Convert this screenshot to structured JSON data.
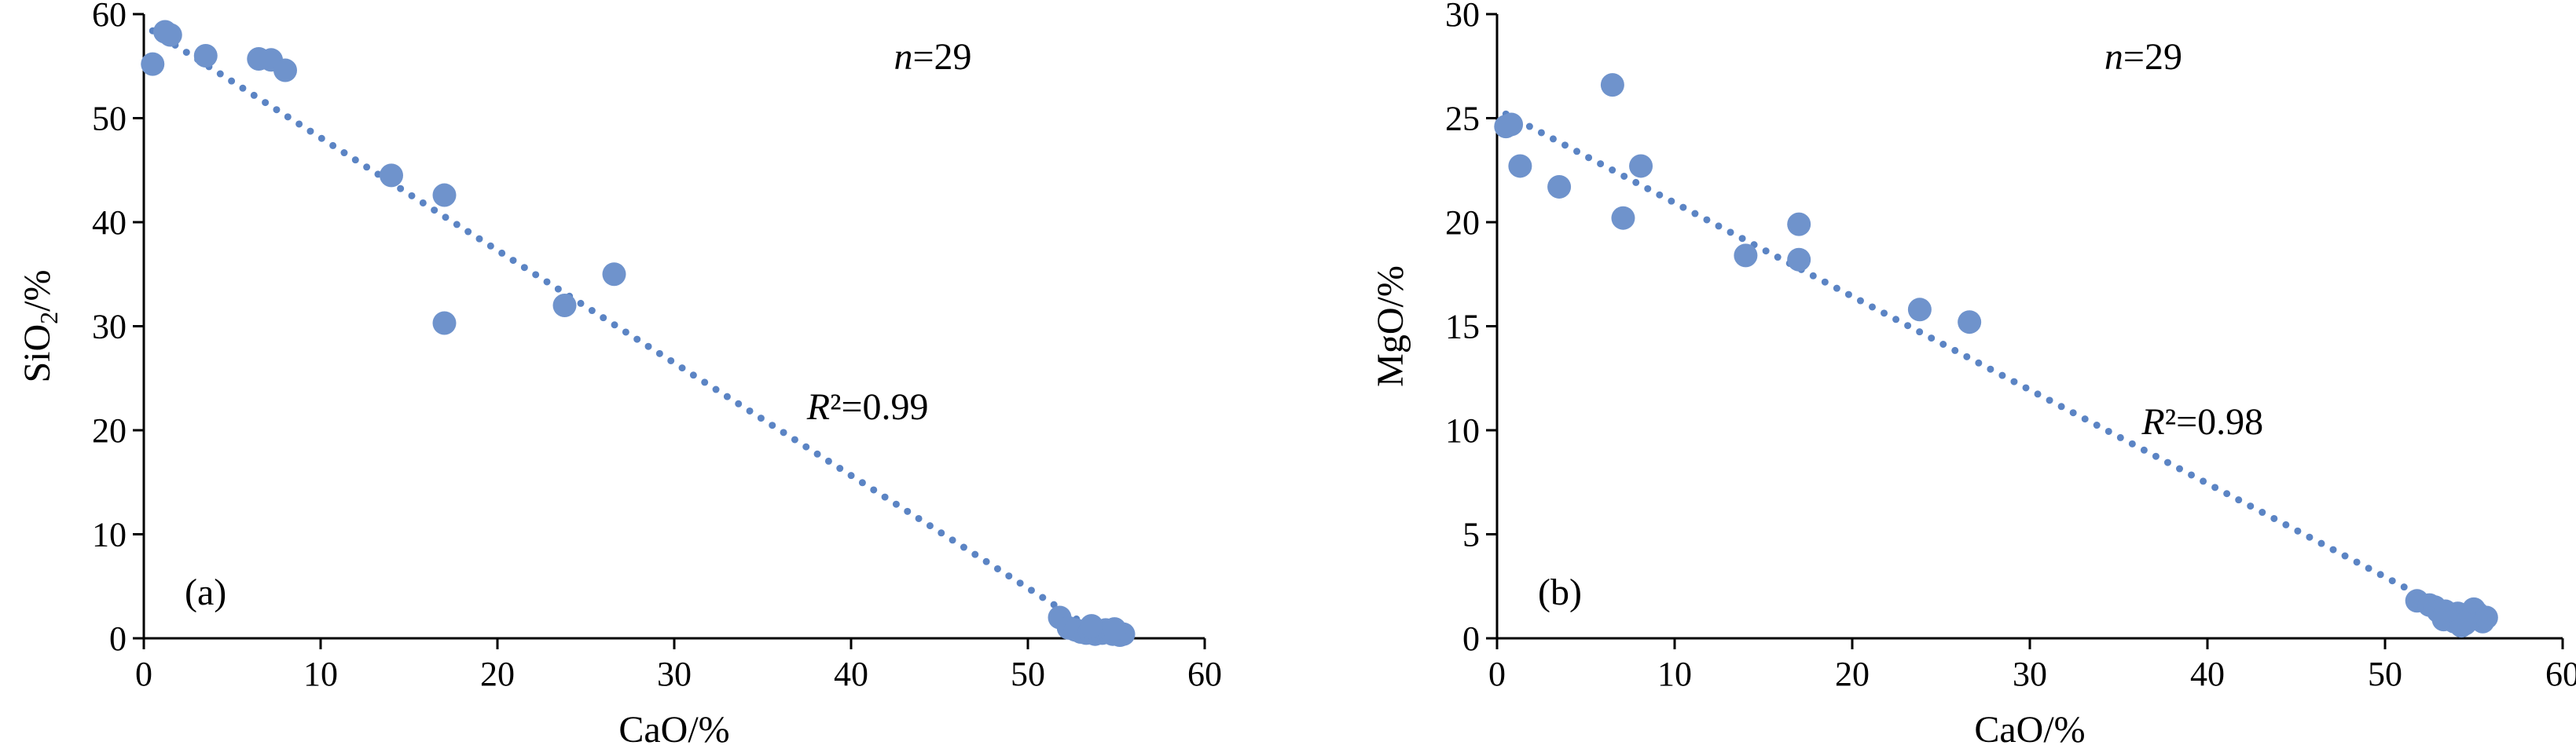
{
  "chart_data": [
    {
      "type": "scatter",
      "panel_label": "(a)",
      "xlabel": "CaO/%",
      "ylabel": {
        "main": "SiO",
        "sub": "2",
        "rest": "/%"
      },
      "xlim": [
        0,
        60
      ],
      "ylim": [
        0,
        60
      ],
      "xticks": [
        0,
        10,
        20,
        30,
        40,
        50,
        60
      ],
      "yticks": [
        0,
        10,
        20,
        30,
        40,
        50,
        60
      ],
      "n_annotation": {
        "var": "n",
        "text": "=29"
      },
      "r2_annotation": {
        "var": "R",
        "text": "²=0.99"
      },
      "trendline": {
        "x": [
          0.5,
          54.0
        ],
        "y": [
          58.4,
          0.5
        ]
      },
      "color": "#6f93cc",
      "points": {
        "x": [
          0.5,
          1.2,
          1.5,
          3.5,
          6.5,
          7.2,
          8.0,
          14.0,
          17.0,
          17.0,
          23.8,
          26.6,
          51.8,
          52.3,
          52.7,
          53.0,
          53.3,
          53.5,
          53.8,
          54.0,
          54.2,
          54.4,
          54.6,
          54.8,
          55.0,
          55.2,
          55.4,
          53.6,
          54.9
        ],
        "y": [
          55.2,
          58.3,
          58.0,
          56.0,
          55.7,
          55.6,
          54.6,
          44.5,
          42.6,
          30.3,
          32.0,
          35.0,
          2.0,
          1.0,
          0.8,
          0.6,
          0.5,
          0.7,
          0.4,
          0.6,
          0.5,
          0.8,
          0.6,
          0.4,
          0.5,
          0.3,
          0.4,
          1.2,
          0.9
        ]
      }
    },
    {
      "type": "scatter",
      "panel_label": "(b)",
      "xlabel": "CaO/%",
      "ylabel": {
        "main": "MgO/%",
        "sub": "",
        "rest": ""
      },
      "xlim": [
        0,
        60
      ],
      "ylim": [
        0,
        30
      ],
      "xticks": [
        0,
        10,
        20,
        30,
        40,
        50,
        60
      ],
      "yticks": [
        0,
        5,
        10,
        15,
        20,
        25,
        30
      ],
      "n_annotation": {
        "var": "n",
        "text": "=29"
      },
      "r2_annotation": {
        "var": "R",
        "text": "²=0.98"
      },
      "trendline": {
        "x": [
          0.5,
          55.0
        ],
        "y": [
          25.2,
          0.7
        ]
      },
      "color": "#6f93cc",
      "points": {
        "x": [
          0.5,
          0.8,
          1.3,
          3.5,
          6.5,
          7.1,
          8.1,
          14.0,
          17.0,
          17.0,
          23.8,
          26.6,
          51.8,
          52.5,
          52.8,
          53.0,
          53.3,
          53.6,
          53.9,
          54.1,
          54.3,
          54.6,
          54.8,
          55.0,
          55.2,
          55.5,
          55.7,
          53.4,
          54.5
        ],
        "y": [
          24.6,
          24.7,
          22.7,
          21.7,
          26.6,
          20.2,
          22.7,
          18.4,
          19.9,
          18.2,
          15.8,
          15.2,
          1.8,
          1.6,
          1.5,
          1.3,
          0.9,
          1.1,
          0.8,
          1.2,
          0.6,
          0.9,
          1.0,
          1.4,
          1.2,
          0.8,
          1.0,
          1.3,
          0.7
        ]
      }
    }
  ]
}
